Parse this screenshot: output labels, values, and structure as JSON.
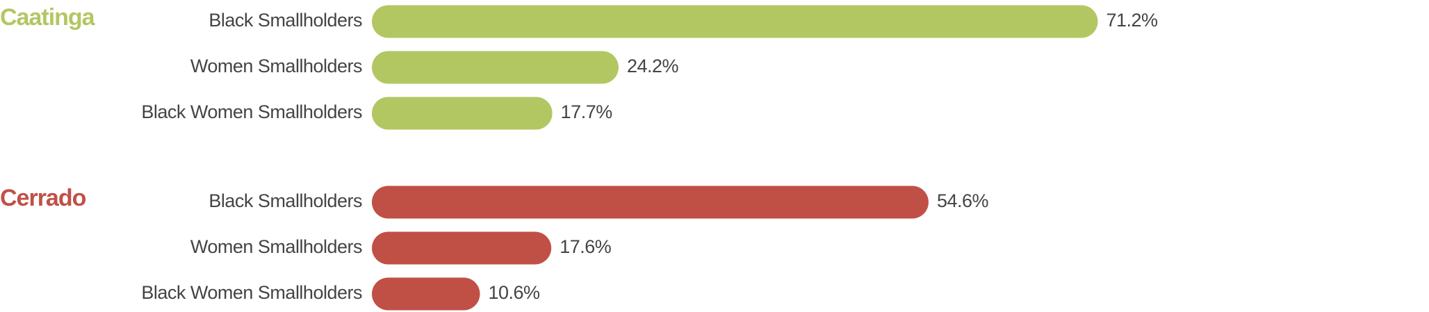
{
  "chart_data": [
    {
      "type": "bar",
      "title": "Caatinga",
      "color": "#b2c762",
      "categories": [
        "Black Smallholders",
        "Women Smallholders",
        "Black Women Smallholders"
      ],
      "values": [
        71.2,
        24.2,
        17.7
      ],
      "value_labels": [
        "71.2%",
        "24.2%",
        "17.7%"
      ]
    },
    {
      "type": "bar",
      "title": "Cerrado",
      "color": "#c05046",
      "categories": [
        "Black Smallholders",
        "Women Smallholders",
        "Black Women Smallholders"
      ],
      "values": [
        54.6,
        17.6,
        10.6
      ],
      "value_labels": [
        "54.6%",
        "17.6%",
        "10.6%"
      ]
    }
  ]
}
